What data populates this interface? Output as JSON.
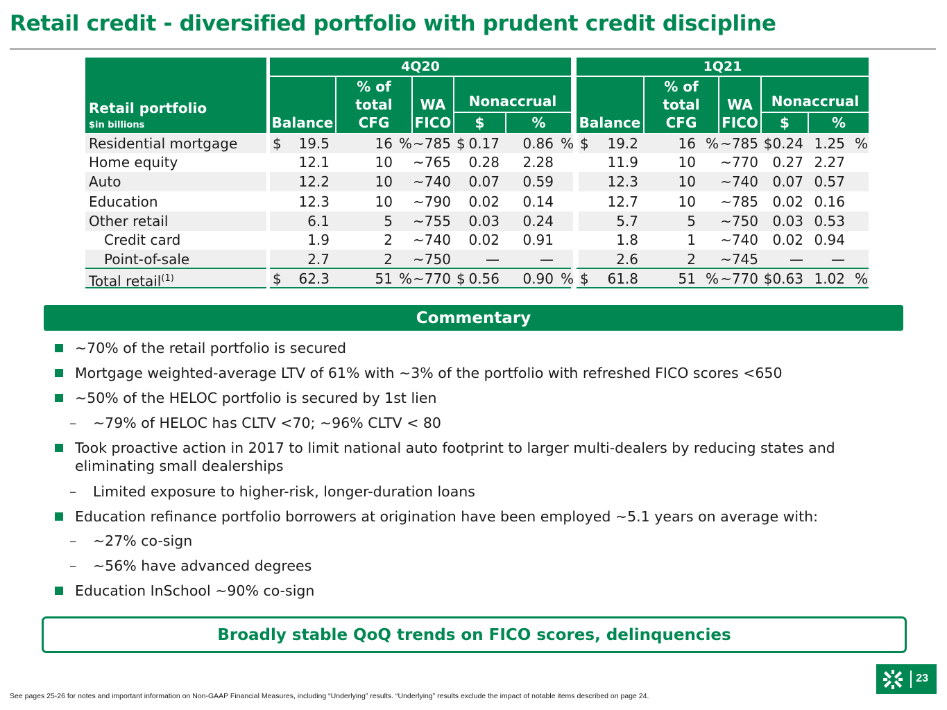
{
  "title": "Retail credit - diversified portfolio with prudent credit discipline",
  "table": {
    "header": {
      "portfolio": "Retail portfolio",
      "units": "$in billions",
      "period1": "4Q20",
      "period2": "1Q21",
      "balance": "Balance",
      "pct_total_p1": "% of total CFG",
      "pct_total_p2": "% of total CFG",
      "wa_fico": "WA FICO",
      "nonaccrual": "Nonaccrual",
      "dollar": "$",
      "pct": "%"
    },
    "rows": [
      {
        "label": "Residential mortgage",
        "cur1": "$",
        "bal1": "19.5",
        "pct1": "16",
        "pctsym1": "%",
        "fico1": "~785",
        "na_cur1": "$",
        "na_d1": "0.17",
        "na_p1": "0.86",
        "na_psym1": "%",
        "cur2": "$",
        "bal2": "19.2",
        "pct2": "16",
        "pctsym2": "%",
        "fico2": "~785",
        "na_d2": "$0.24",
        "na_p2": "1.25",
        "na_psym2": "%"
      },
      {
        "label": "Home equity",
        "cur1": "",
        "bal1": "12.1",
        "pct1": "10",
        "pctsym1": "",
        "fico1": "~765",
        "na_cur1": "",
        "na_d1": "0.28",
        "na_p1": "2.28",
        "na_psym1": "",
        "cur2": "",
        "bal2": "11.9",
        "pct2": "10",
        "pctsym2": "",
        "fico2": "~770",
        "na_d2": "0.27",
        "na_p2": "2.27",
        "na_psym2": ""
      },
      {
        "label": "Auto",
        "cur1": "",
        "bal1": "12.2",
        "pct1": "10",
        "pctsym1": "",
        "fico1": "~740",
        "na_cur1": "",
        "na_d1": "0.07",
        "na_p1": "0.59",
        "na_psym1": "",
        "cur2": "",
        "bal2": "12.3",
        "pct2": "10",
        "pctsym2": "",
        "fico2": "~740",
        "na_d2": "0.07",
        "na_p2": "0.57",
        "na_psym2": ""
      },
      {
        "label": "Education",
        "cur1": "",
        "bal1": "12.3",
        "pct1": "10",
        "pctsym1": "",
        "fico1": "~790",
        "na_cur1": "",
        "na_d1": "0.02",
        "na_p1": "0.14",
        "na_psym1": "",
        "cur2": "",
        "bal2": "12.7",
        "pct2": "10",
        "pctsym2": "",
        "fico2": "~785",
        "na_d2": "0.02",
        "na_p2": "0.16",
        "na_psym2": ""
      },
      {
        "label": "Other retail",
        "cur1": "",
        "bal1": "6.1",
        "pct1": "5",
        "pctsym1": "",
        "fico1": "~755",
        "na_cur1": "",
        "na_d1": "0.03",
        "na_p1": "0.24",
        "na_psym1": "",
        "cur2": "",
        "bal2": "5.7",
        "pct2": "5",
        "pctsym2": "",
        "fico2": "~750",
        "na_d2": "0.03",
        "na_p2": "0.53",
        "na_psym2": ""
      },
      {
        "label": "Credit card",
        "cur1": "",
        "bal1": "1.9",
        "pct1": "2",
        "pctsym1": "",
        "fico1": "~740",
        "na_cur1": "",
        "na_d1": "0.02",
        "na_p1": "0.91",
        "na_psym1": "",
        "cur2": "",
        "bal2": "1.8",
        "pct2": "1",
        "pctsym2": "",
        "fico2": "~740",
        "na_d2": "0.02",
        "na_p2": "0.94",
        "na_psym2": ""
      },
      {
        "label": "Point-of-sale",
        "cur1": "",
        "bal1": "2.7",
        "pct1": "2",
        "pctsym1": "",
        "fico1": "~750",
        "na_cur1": "",
        "na_d1": "—",
        "na_p1": "—",
        "na_psym1": "",
        "cur2": "",
        "bal2": "2.6",
        "pct2": "2",
        "pctsym2": "",
        "fico2": "~745",
        "na_d2": "—",
        "na_p2": "—",
        "na_psym2": ""
      }
    ],
    "total": {
      "label": "Total retail",
      "sup": "(1)",
      "cur1": "$",
      "bal1": "62.3",
      "pct1": "51",
      "pctsym1": "%",
      "fico1": "~770",
      "na_cur1": "$",
      "na_d1": "0.56",
      "na_p1": "0.90",
      "na_psym1": "%",
      "cur2": "$",
      "bal2": "61.8",
      "pct2": "51",
      "pctsym2": "%",
      "fico2": "~770",
      "na_d2": "$0.63",
      "na_p2": "1.02",
      "na_psym2": "%"
    }
  },
  "commentary": {
    "heading": "Commentary",
    "b1": "~70% of the retail portfolio is secured",
    "b2": "Mortgage weighted-average LTV of 61% with ~3% of the portfolio with refreshed FICO scores <650",
    "b3": "~50% of the HELOC portfolio is secured by 1st lien",
    "b3s1": "~79% of HELOC has CLTV  <70; ~96% CLTV < 80",
    "b4a": "Took proactive action in 2017 to limit national auto footprint to larger multi-dealers by reducing states and",
    "b4b": "eliminating small dealerships",
    "b4s1": "Limited exposure to higher-risk, longer-duration loans",
    "b5": "Education refinance portfolio borrowers at origination have been employed ~5.1 years on average with:",
    "b5s1": "~27% co-sign",
    "b5s2": "~56% have advanced degrees",
    "b6": "Education InSchool ~90% co-sign",
    "dash": "–"
  },
  "callout": "Broadly stable QoQ trends on FICO scores, delinquencies",
  "page_number": "23",
  "footnote": "See pages 25-26 for notes and important information on Non-GAAP Financial Measures, including “Underlying” results. “Underlying” results exclude the impact of notable items described on page 24.",
  "colors": {
    "brand_green": "#008752",
    "row_shade": "#efefef",
    "rule": "#b3b3b3"
  },
  "icons": {
    "logo": "citizens-logo-icon"
  }
}
